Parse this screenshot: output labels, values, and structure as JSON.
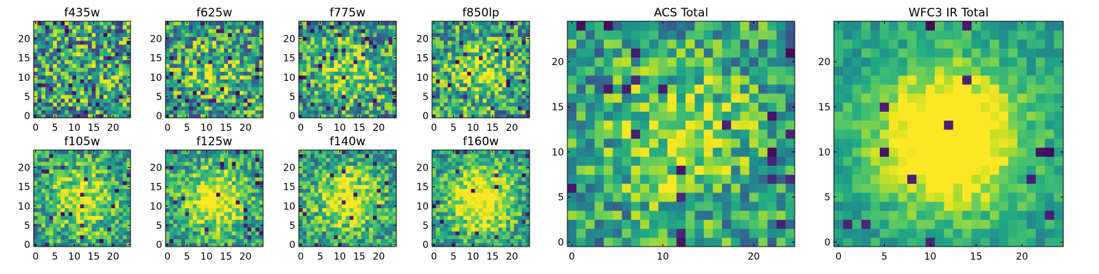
{
  "chart_data": [
    {
      "type": "heatmap",
      "title": "f435w",
      "grid_size": 25,
      "xticks": [
        0,
        5,
        10,
        15,
        20
      ],
      "yticks": [
        0,
        5,
        10,
        15,
        20
      ],
      "xlim": [
        0,
        24
      ],
      "ylim": [
        0,
        24
      ],
      "colormap": "viridis",
      "seed": 11,
      "core_strength": 0.05,
      "noise": 0.42,
      "dark_fraction": 0.04
    },
    {
      "type": "heatmap",
      "title": "f625w",
      "grid_size": 25,
      "xticks": [
        0,
        5,
        10,
        15,
        20
      ],
      "yticks": [
        0,
        5,
        10,
        15,
        20
      ],
      "xlim": [
        0,
        24
      ],
      "ylim": [
        0,
        24
      ],
      "colormap": "viridis",
      "seed": 22,
      "core_strength": 0.18,
      "noise": 0.38,
      "dark_fraction": 0.03
    },
    {
      "type": "heatmap",
      "title": "f775w",
      "grid_size": 25,
      "xticks": [
        0,
        5,
        10,
        15,
        20
      ],
      "yticks": [
        0,
        5,
        10,
        15,
        20
      ],
      "xlim": [
        0,
        24
      ],
      "ylim": [
        0,
        24
      ],
      "colormap": "viridis",
      "seed": 33,
      "core_strength": 0.28,
      "noise": 0.36,
      "dark_fraction": 0.04
    },
    {
      "type": "heatmap",
      "title": "f850lp",
      "grid_size": 25,
      "xticks": [
        0,
        5,
        10,
        15,
        20
      ],
      "yticks": [
        0,
        5,
        10,
        15,
        20
      ],
      "xlim": [
        0,
        24
      ],
      "ylim": [
        0,
        24
      ],
      "colormap": "viridis",
      "seed": 44,
      "core_strength": 0.3,
      "noise": 0.36,
      "dark_fraction": 0.04
    },
    {
      "type": "heatmap",
      "title": "f105w",
      "grid_size": 25,
      "xticks": [
        0,
        5,
        10,
        15,
        20
      ],
      "yticks": [
        0,
        5,
        10,
        15,
        20
      ],
      "xlim": [
        0,
        24
      ],
      "ylim": [
        0,
        24
      ],
      "colormap": "viridis",
      "seed": 55,
      "core_strength": 0.45,
      "noise": 0.3,
      "dark_fraction": 0.03
    },
    {
      "type": "heatmap",
      "title": "f125w",
      "grid_size": 25,
      "xticks": [
        0,
        5,
        10,
        15,
        20
      ],
      "yticks": [
        0,
        5,
        10,
        15,
        20
      ],
      "xlim": [
        0,
        24
      ],
      "ylim": [
        0,
        24
      ],
      "colormap": "viridis",
      "seed": 66,
      "core_strength": 0.55,
      "noise": 0.28,
      "dark_fraction": 0.04
    },
    {
      "type": "heatmap",
      "title": "f140w",
      "grid_size": 25,
      "xticks": [
        0,
        5,
        10,
        15,
        20
      ],
      "yticks": [
        0,
        5,
        10,
        15,
        20
      ],
      "xlim": [
        0,
        24
      ],
      "ylim": [
        0,
        24
      ],
      "colormap": "viridis",
      "seed": 77,
      "core_strength": 0.5,
      "noise": 0.28,
      "dark_fraction": 0.03
    },
    {
      "type": "heatmap",
      "title": "f160w",
      "grid_size": 25,
      "xticks": [
        0,
        5,
        10,
        15,
        20
      ],
      "yticks": [
        0,
        5,
        10,
        15,
        20
      ],
      "xlim": [
        0,
        24
      ],
      "ylim": [
        0,
        24
      ],
      "colormap": "viridis",
      "seed": 88,
      "core_strength": 0.6,
      "noise": 0.26,
      "dark_fraction": 0.03
    },
    {
      "type": "heatmap",
      "title": "ACS Total",
      "grid_size": 25,
      "xticks": [
        0,
        10,
        20
      ],
      "yticks": [
        0,
        5,
        10,
        15,
        20
      ],
      "xlim": [
        0,
        24
      ],
      "ylim": [
        0,
        24
      ],
      "colormap": "viridis",
      "seed": 99,
      "core_strength": 0.35,
      "noise": 0.3,
      "dark_fraction": 0.04
    },
    {
      "type": "heatmap",
      "title": "WFC3 IR Total",
      "grid_size": 25,
      "xticks": [
        0,
        5,
        10,
        15,
        20
      ],
      "yticks": [
        0,
        5,
        10,
        15,
        20
      ],
      "xlim": [
        0,
        24
      ],
      "ylim": [
        0,
        24
      ],
      "colormap": "viridis",
      "seed": 111,
      "core_strength": 0.75,
      "noise": 0.14,
      "dark_fraction": 0.02
    }
  ]
}
